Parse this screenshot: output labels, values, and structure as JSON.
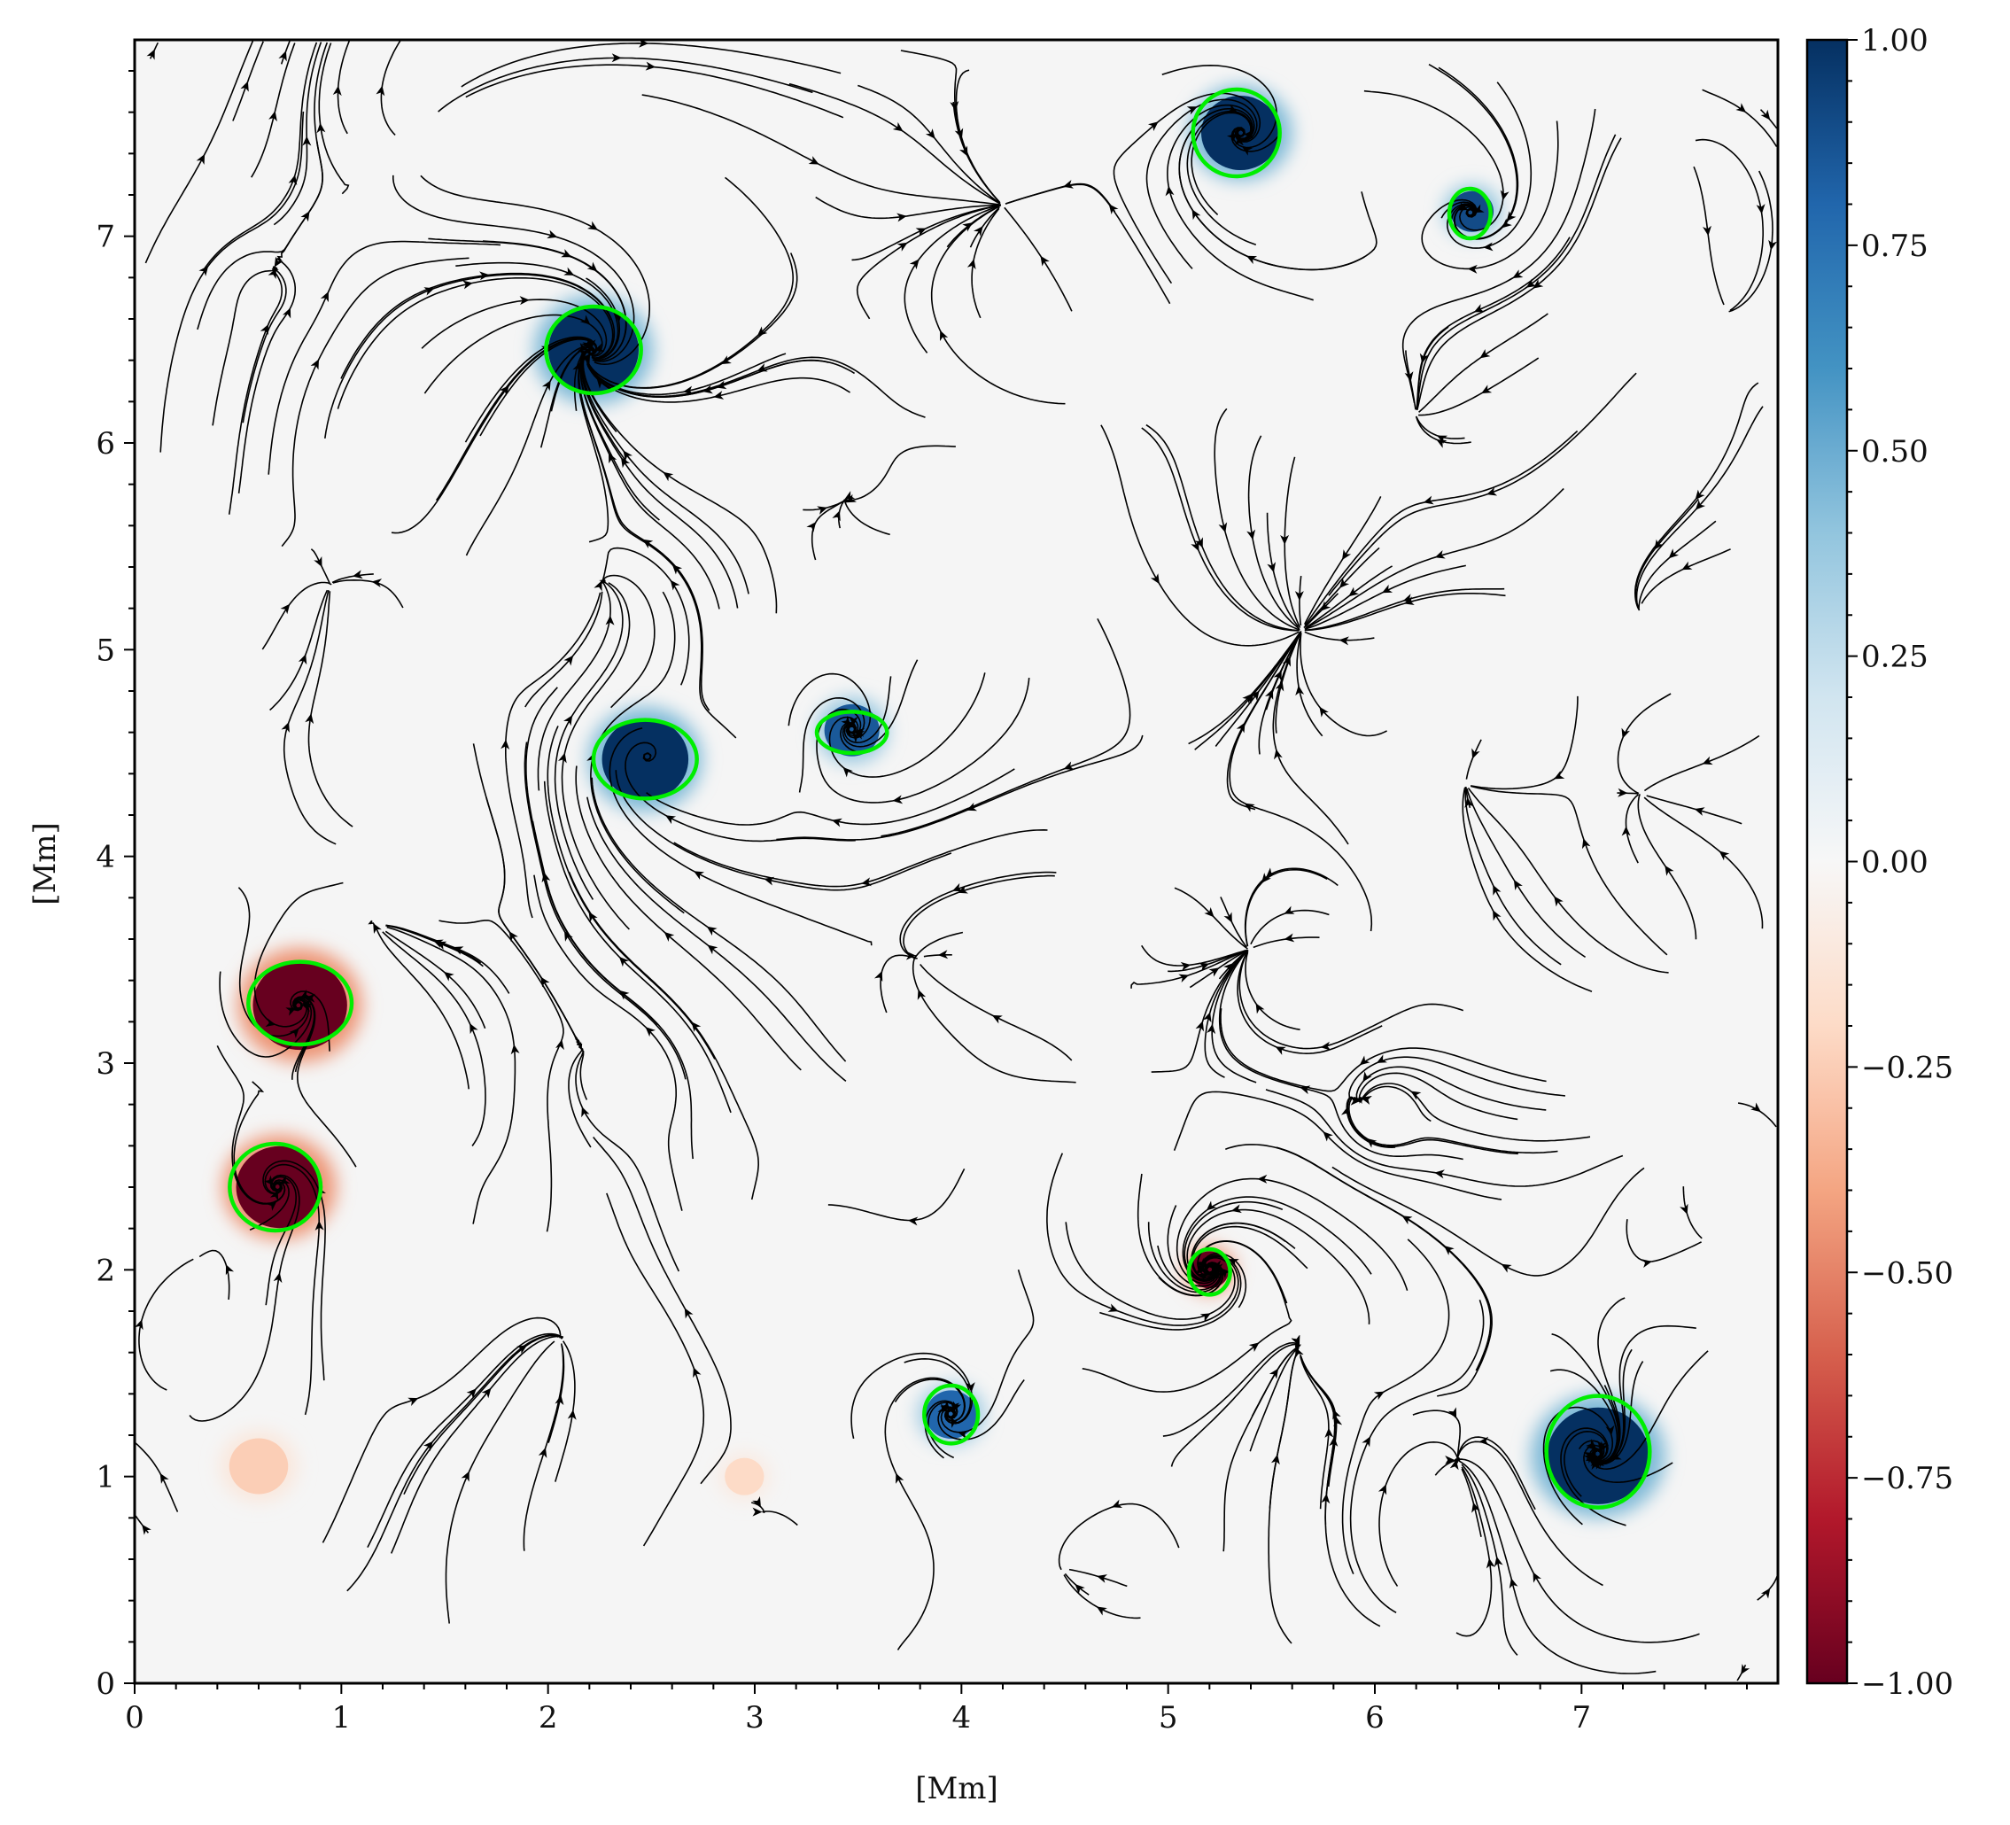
{
  "chart_data": {
    "type": "heatmap",
    "title": "",
    "xlabel": "[Mm]",
    "ylabel": "[Mm]",
    "xlim": [
      0,
      7.95
    ],
    "ylim": [
      0,
      7.95
    ],
    "x_ticks": [
      "0",
      "1",
      "2",
      "3",
      "4",
      "5",
      "6",
      "7"
    ],
    "y_ticks": [
      "0",
      "1",
      "2",
      "3",
      "4",
      "5",
      "6",
      "7"
    ],
    "colorbar": {
      "colormap": "RdBu",
      "range": [
        -1.0,
        1.0
      ],
      "ticks": [
        "1.00",
        "0.75",
        "0.50",
        "0.25",
        "0.00",
        "−0.25",
        "−0.50",
        "−0.75",
        "−1.00"
      ],
      "colors": [
        "#67001f",
        "#b2182b",
        "#d6604d",
        "#f4a582",
        "#fddbc7",
        "#f7f7f7",
        "#d1e5f0",
        "#92c5de",
        "#4393c3",
        "#2166ac",
        "#053061"
      ]
    },
    "overlay": {
      "streamlines": "velocity field (black)",
      "contour_color": "#00ee00"
    },
    "features": [
      {
        "x": 5.35,
        "y": 7.5,
        "value": 1.0,
        "r": 0.2
      },
      {
        "x": 6.47,
        "y": 7.12,
        "value": 0.9,
        "r": 0.11
      },
      {
        "x": 2.22,
        "y": 6.45,
        "value": 1.0,
        "r": 0.23
      },
      {
        "x": 2.47,
        "y": 4.47,
        "value": 1.0,
        "r": 0.22
      },
      {
        "x": 3.47,
        "y": 4.61,
        "value": 0.85,
        "r": 0.14
      },
      {
        "x": 0.8,
        "y": 3.28,
        "value": -1.0,
        "r": 0.24
      },
      {
        "x": 0.7,
        "y": 2.4,
        "value": -1.0,
        "r": 0.22
      },
      {
        "x": 5.2,
        "y": 2.0,
        "value": -1.0,
        "r": 0.1
      },
      {
        "x": 3.95,
        "y": 1.3,
        "value": 0.8,
        "r": 0.13
      },
      {
        "x": 7.08,
        "y": 1.1,
        "value": 1.0,
        "r": 0.26
      },
      {
        "x": 0.6,
        "y": 1.05,
        "value": -0.25,
        "r": 0.15
      },
      {
        "x": 2.95,
        "y": 1.0,
        "value": -0.2,
        "r": 0.1
      }
    ],
    "contours": [
      {
        "x": 5.33,
        "y": 7.5,
        "rx": 0.21,
        "ry": 0.21
      },
      {
        "x": 6.46,
        "y": 7.11,
        "rx": 0.1,
        "ry": 0.12
      },
      {
        "x": 2.22,
        "y": 6.45,
        "rx": 0.23,
        "ry": 0.21
      },
      {
        "x": 2.47,
        "y": 4.47,
        "rx": 0.25,
        "ry": 0.19
      },
      {
        "x": 3.47,
        "y": 4.6,
        "rx": 0.17,
        "ry": 0.1
      },
      {
        "x": 0.8,
        "y": 3.29,
        "rx": 0.25,
        "ry": 0.2
      },
      {
        "x": 0.68,
        "y": 2.4,
        "rx": 0.22,
        "ry": 0.21
      },
      {
        "x": 5.2,
        "y": 1.99,
        "rx": 0.1,
        "ry": 0.11
      },
      {
        "x": 3.95,
        "y": 1.3,
        "rx": 0.13,
        "ry": 0.14
      },
      {
        "x": 7.08,
        "y": 1.12,
        "rx": 0.25,
        "ry": 0.27
      }
    ],
    "sources": [
      [
        1.35,
        7.45
      ],
      [
        0.65,
        6.7
      ],
      [
        4.45,
        7.7
      ],
      [
        5.9,
        7.4
      ],
      [
        7.5,
        7.4
      ],
      [
        1.2,
        5.6
      ],
      [
        3.45,
        5.9
      ],
      [
        4.6,
        6.2
      ],
      [
        5.85,
        6.25
      ],
      [
        7.35,
        6.4
      ],
      [
        0.45,
        4.9
      ],
      [
        1.8,
        5.0
      ],
      [
        4.05,
        5.2
      ],
      [
        6.6,
        4.85
      ],
      [
        7.6,
        5.0
      ],
      [
        0.35,
        3.9
      ],
      [
        1.65,
        3.8
      ],
      [
        3.1,
        4.35
      ],
      [
        4.7,
        3.85
      ],
      [
        5.95,
        3.6
      ],
      [
        7.5,
        3.45
      ],
      [
        1.55,
        2.6
      ],
      [
        2.4,
        2.8
      ],
      [
        3.7,
        2.7
      ],
      [
        4.6,
        2.9
      ],
      [
        6.1,
        2.75
      ],
      [
        7.5,
        2.55
      ],
      [
        0.25,
        1.45
      ],
      [
        1.25,
        1.55
      ],
      [
        3.3,
        1.85
      ],
      [
        4.5,
        1.5
      ],
      [
        5.85,
        1.6
      ],
      [
        7.7,
        1.7
      ],
      [
        0.6,
        0.35
      ],
      [
        2.0,
        0.45
      ],
      [
        3.5,
        0.4
      ],
      [
        5.0,
        0.4
      ],
      [
        6.3,
        0.35
      ],
      [
        7.75,
        0.35
      ]
    ],
    "sinks": [
      [
        0.65,
        6.75
      ],
      [
        2.2,
        6.4
      ],
      [
        4.2,
        7.15
      ],
      [
        6.2,
        6.15
      ],
      [
        7.7,
        6.65
      ],
      [
        0.95,
        5.3
      ],
      [
        3.45,
        5.75
      ],
      [
        5.65,
        5.1
      ],
      [
        7.3,
        5.2
      ],
      [
        2.25,
        5.3
      ],
      [
        6.45,
        4.35
      ],
      [
        7.3,
        4.3
      ],
      [
        3.8,
        3.5
      ],
      [
        5.4,
        3.55
      ],
      [
        1.2,
        3.65
      ],
      [
        2.2,
        3.0
      ],
      [
        6.0,
        2.8
      ],
      [
        3.35,
        2.3
      ],
      [
        7.6,
        2.15
      ],
      [
        2.05,
        1.65
      ],
      [
        3.05,
        0.8
      ],
      [
        5.65,
        1.6
      ],
      [
        6.4,
        1.05
      ],
      [
        0.3,
        2.05
      ],
      [
        4.5,
        0.55
      ]
    ]
  }
}
